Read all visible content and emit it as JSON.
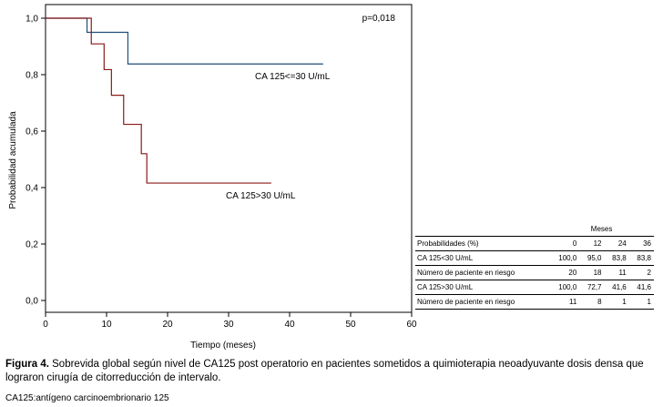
{
  "chart_data": {
    "type": "line",
    "subtype": "kaplan-meier",
    "ylabel": "Probabilidad acumulada",
    "xlabel": "Tiempo (meses)",
    "xlim": [
      0,
      60
    ],
    "ylim": [
      0,
      1.0
    ],
    "xticks": [
      "0",
      "10",
      "20",
      "30",
      "40",
      "50",
      "60"
    ],
    "yticks": [
      "0,0",
      "0,2",
      "0,4",
      "0,6",
      "0,8",
      "1,0"
    ],
    "annotation": "p=0,018",
    "grid": false,
    "colors": {
      "low": "#1f4e79",
      "high": "#8b1a1a"
    },
    "series": [
      {
        "name": "CA 125<=30 U/mL",
        "color": "#1f4e79",
        "points": [
          [
            0,
            1.0
          ],
          [
            6.8,
            1.0
          ],
          [
            6.8,
            0.95
          ],
          [
            13.5,
            0.95
          ],
          [
            13.5,
            0.838
          ],
          [
            45.5,
            0.838
          ]
        ]
      },
      {
        "name": "CA 125>30 U/mL",
        "color": "#8b1a1a",
        "points": [
          [
            0,
            1.0
          ],
          [
            7.5,
            1.0
          ],
          [
            7.5,
            0.909
          ],
          [
            9.6,
            0.909
          ],
          [
            9.6,
            0.818
          ],
          [
            10.8,
            0.818
          ],
          [
            10.8,
            0.727
          ],
          [
            12.8,
            0.727
          ],
          [
            12.8,
            0.624
          ],
          [
            15.7,
            0.624
          ],
          [
            15.7,
            0.52
          ],
          [
            16.6,
            0.52
          ],
          [
            16.6,
            0.416
          ],
          [
            37,
            0.416
          ]
        ]
      }
    ]
  },
  "risk_table": {
    "header": "Meses",
    "columns_label": "Probabilidades (%)",
    "columns": [
      "0",
      "12",
      "24",
      "36"
    ],
    "rows": [
      {
        "label": "CA 125<30 U/mL",
        "values": [
          "100,0",
          "95,0",
          "83,8",
          "83,8"
        ]
      },
      {
        "label": "Número de paciente en riesgo",
        "values": [
          "20",
          "18",
          "11",
          "2"
        ]
      },
      {
        "label": "CA 125>30 U/mL",
        "values": [
          "100,0",
          "72,7",
          "41,6",
          "41,6"
        ]
      },
      {
        "label": "Número de paciente en riesgo",
        "values": [
          "11",
          "8",
          "1",
          "1"
        ]
      }
    ]
  },
  "caption": {
    "label": "Figura 4.",
    "text": "Sobrevida global según nivel de CA125 post operatorio en pacientes sometidos a quimioterapia neoadyuvante dosis densa que lograron cirugía de citorreducción de intervalo."
  },
  "footnote": "CA125:antígeno carcinoembrionario 125"
}
